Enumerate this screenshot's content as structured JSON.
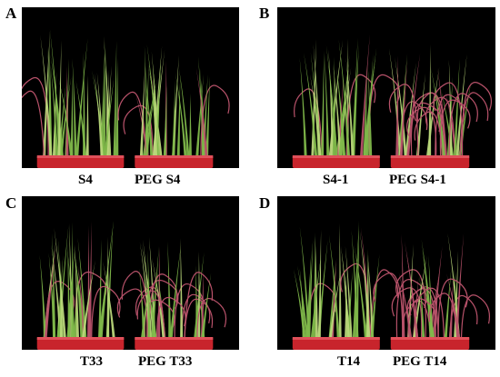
{
  "figure": {
    "panels": [
      {
        "letter": "A",
        "left_label": "S4",
        "right_label": "PEG S4",
        "stress": 0.25
      },
      {
        "letter": "B",
        "left_label": "S4-1",
        "right_label": "PEG S4-1",
        "stress": 0.6
      },
      {
        "letter": "C",
        "left_label": "T33",
        "right_label": "PEG T33",
        "stress": 0.5
      },
      {
        "letter": "D",
        "left_label": "T14",
        "right_label": "PEG T14",
        "stress": 0.55
      }
    ],
    "colors": {
      "background": "#000000",
      "leaf_green": "#7fb84a",
      "leaf_pale": "#b9d77a",
      "leaf_red": "#b8526a",
      "pot_red": "#c8242c"
    }
  }
}
